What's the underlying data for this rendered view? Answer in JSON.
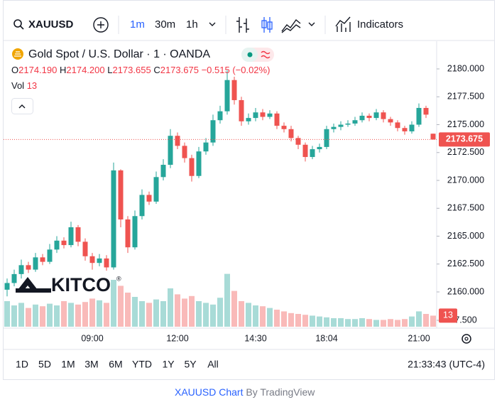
{
  "toolbar": {
    "symbol": "XAUUSD",
    "intervals": [
      "1m",
      "30m",
      "1h"
    ],
    "indicators": "Indicators"
  },
  "chart_data": {
    "type": "candlestick",
    "title": "Gold Spot / U.S. Dollar · 1 · OANDA",
    "ohlc_legend": [
      {
        "key": "O",
        "text": "2174.190"
      },
      {
        "key": "H",
        "text": "2174.200"
      },
      {
        "key": "L",
        "text": "2173.655"
      },
      {
        "key": "C",
        "text": "2173.675"
      }
    ],
    "change": "−0.515 (−0.02%)",
    "volume_label": "Vol",
    "watermark": "KITCO",
    "watermark_mark": "®",
    "up_color": "#26a69a",
    "down_color": "#ef5350",
    "categories": [
      null,
      null,
      null,
      null,
      null,
      null,
      null,
      null,
      null,
      null,
      null,
      null,
      "09:00",
      null,
      null,
      null,
      null,
      null,
      null,
      null,
      null,
      null,
      null,
      null,
      "12:00",
      null,
      null,
      null,
      null,
      null,
      null,
      null,
      null,
      null,
      null,
      "14:30",
      null,
      null,
      null,
      null,
      null,
      null,
      null,
      null,
      null,
      "18:04",
      null,
      null,
      null,
      null,
      null,
      null,
      null,
      null,
      null,
      null,
      null,
      null,
      "21:00",
      null,
      null
    ],
    "open": [
      2160.2,
      2160.8,
      2161.6,
      2162.4,
      2162.0,
      2163.1,
      2162.7,
      2163.8,
      2164.6,
      2164.2,
      2165.8,
      2164.5,
      2163.2,
      2162.6,
      2163.0,
      2162.2,
      2170.9,
      2166.5,
      2164.0,
      2166.8,
      2168.7,
      2168.1,
      2170.3,
      2171.4,
      2174.0,
      2173.1,
      2172.0,
      2170.4,
      2172.6,
      2173.4,
      2175.4,
      2176.2,
      2179.0,
      2177.2,
      2175.3,
      2175.6,
      2176.1,
      2175.7,
      2176.0,
      2174.9,
      2174.6,
      2173.8,
      2173.2,
      2172.1,
      2172.8,
      2173.0,
      2174.6,
      2174.8,
      2175.0,
      2175.1,
      2175.4,
      2175.8,
      2175.6,
      2176.1,
      2175.5,
      2175.2,
      2174.7,
      2174.4,
      2175.0,
      2176.5,
      2174.19
    ],
    "high": [
      2161.2,
      2162.0,
      2162.9,
      2162.7,
      2163.5,
      2163.4,
      2164.3,
      2165.0,
      2164.9,
      2166.3,
      2166.0,
      2164.8,
      2163.5,
      2163.4,
      2163.3,
      2171.6,
      2171.0,
      2166.8,
      2167.3,
      2169.2,
      2169.0,
      2170.8,
      2171.9,
      2174.6,
      2174.3,
      2173.4,
      2172.3,
      2173.0,
      2173.8,
      2175.9,
      2176.7,
      2179.9,
      2179.3,
      2177.5,
      2176.0,
      2176.5,
      2176.4,
      2176.3,
      2176.2,
      2175.2,
      2174.9,
      2174.0,
      2173.4,
      2173.1,
      2173.3,
      2174.9,
      2175.1,
      2175.3,
      2175.4,
      2175.7,
      2176.1,
      2176.0,
      2176.4,
      2176.3,
      2175.7,
      2175.4,
      2174.9,
      2175.3,
      2176.9,
      2176.7,
      2174.2
    ],
    "low": [
      2159.6,
      2160.5,
      2161.2,
      2161.7,
      2161.8,
      2162.4,
      2162.5,
      2163.5,
      2163.9,
      2164.0,
      2164.1,
      2162.8,
      2162.0,
      2162.3,
      2161.9,
      2162.0,
      2165.8,
      2163.5,
      2163.8,
      2166.5,
      2167.8,
      2167.9,
      2170.0,
      2171.1,
      2172.8,
      2171.6,
      2169.9,
      2170.2,
      2172.3,
      2173.1,
      2175.1,
      2175.9,
      2176.8,
      2174.9,
      2175.0,
      2175.3,
      2175.4,
      2175.5,
      2174.6,
      2174.3,
      2173.5,
      2172.8,
      2171.7,
      2171.9,
      2172.5,
      2172.8,
      2174.3,
      2174.5,
      2174.8,
      2174.9,
      2175.2,
      2175.3,
      2175.4,
      2175.2,
      2174.9,
      2174.4,
      2174.1,
      2174.2,
      2174.8,
      2175.6,
      2173.655
    ],
    "close": [
      2160.8,
      2161.6,
      2162.4,
      2162.0,
      2163.1,
      2162.7,
      2163.8,
      2164.6,
      2164.2,
      2165.8,
      2164.5,
      2163.2,
      2162.6,
      2163.0,
      2162.2,
      2170.9,
      2166.5,
      2164.0,
      2166.8,
      2168.7,
      2168.1,
      2170.3,
      2171.4,
      2174.0,
      2173.1,
      2172.0,
      2170.4,
      2172.6,
      2173.4,
      2175.4,
      2176.2,
      2179.0,
      2177.2,
      2175.3,
      2175.6,
      2176.1,
      2175.7,
      2176.0,
      2174.9,
      2174.6,
      2173.8,
      2173.2,
      2172.1,
      2172.8,
      2173.0,
      2174.6,
      2174.8,
      2175.0,
      2175.1,
      2175.4,
      2175.8,
      2175.6,
      2176.1,
      2175.5,
      2175.2,
      2174.7,
      2174.4,
      2175.0,
      2176.5,
      2175.9,
      2173.675
    ],
    "ylim": [
      2156.88,
      2182.23
    ],
    "yticks": [
      {
        "value": 2160,
        "label": "2160.000"
      },
      {
        "value": 2162.5,
        "label": "2162.500"
      },
      {
        "value": 2165,
        "label": "2165.000"
      },
      {
        "value": 2167.5,
        "label": "2167.500"
      },
      {
        "value": 2170,
        "label": "2170.000"
      },
      {
        "value": 2172.5,
        "label": "2172.500"
      },
      {
        "value": 2175,
        "label": "2175.000"
      },
      {
        "value": 2177.5,
        "label": "2177.500"
      },
      {
        "value": 2180,
        "label": "2180.000"
      }
    ],
    "last_price": {
      "value": 2173.675,
      "label": "2173.675"
    },
    "grid": false,
    "volume": {
      "values": [
        30,
        25,
        28,
        22,
        26,
        24,
        27,
        25,
        30,
        28,
        26,
        29,
        33,
        31,
        28,
        55,
        48,
        40,
        35,
        30,
        28,
        32,
        30,
        45,
        38,
        33,
        36,
        30,
        28,
        26,
        34,
        62,
        42,
        30,
        28,
        25,
        24,
        22,
        20,
        18,
        16,
        15,
        14,
        13,
        12,
        11,
        10,
        10,
        9,
        9,
        10,
        9,
        8,
        8,
        9,
        8,
        9,
        12,
        18,
        15,
        13
      ],
      "ylim": [
        0,
        62.5
      ],
      "yticks": [
        {
          "value": 7.5,
          "label": "7.500"
        }
      ]
    }
  },
  "ranges": [
    "1D",
    "5D",
    "1M",
    "3M",
    "6M",
    "YTD",
    "1Y",
    "5Y",
    "All"
  ],
  "clock": "21:33:43 (UTC-4)",
  "footer": {
    "link": "XAUUSD Chart",
    "by": "By TradingView"
  }
}
